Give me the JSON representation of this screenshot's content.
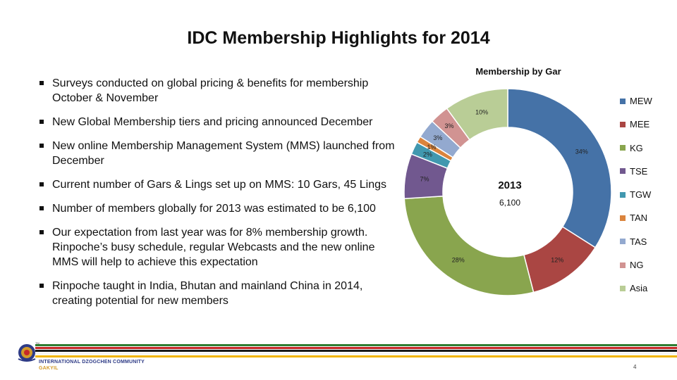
{
  "slide": {
    "title": "IDC Membership Highlights for 2014",
    "bullets": [
      "Surveys conducted on global pricing & benefits for membership October & November",
      "New Global Membership tiers and pricing announced December",
      "New online Membership Management System (MMS) launched from December",
      "Current number of Gars & Lings set up on MMS:  10 Gars, 45 Lings",
      "Number of members globally for 2013 was estimated to be 6,100",
      "Our expectation from last year was for 8% membership growth. Rinpoche’s busy schedule, regular Webcasts and the new online MMS will help to achieve this expectation",
      "Rinpoche taught in India, Bhutan and mainland China in 2014, creating potential for new members"
    ],
    "footer": {
      "org_name": "INTERNATIONAL DZOGCHEN COMMUNITY",
      "org_sub": "GAKYIL",
      "page_number": "4",
      "line_colors": [
        "#2e7d32",
        "#c62828",
        "#1a1a1a",
        "#f5f5f5",
        "#f0b400"
      ]
    }
  },
  "chart_data": {
    "type": "pie",
    "title": "Membership by Gar",
    "center_label": "2013",
    "center_value": "6,100",
    "categories": [
      "MEW",
      "MEE",
      "KG",
      "TSE",
      "TGW",
      "TAN",
      "TAS",
      "NG",
      "Asia"
    ],
    "values": [
      34,
      12,
      28,
      7,
      2,
      1,
      3,
      3,
      10
    ],
    "data_labels": [
      "34%",
      "12%",
      "28%",
      "7%",
      "2%",
      "1%",
      "3%",
      "3%",
      "10%"
    ],
    "colors": [
      "#4572a7",
      "#aa4643",
      "#89a54e",
      "#71588f",
      "#4198af",
      "#db843d",
      "#93a9cf",
      "#d19392",
      "#b9cd96"
    ],
    "legend_position": "right",
    "donut": true
  }
}
